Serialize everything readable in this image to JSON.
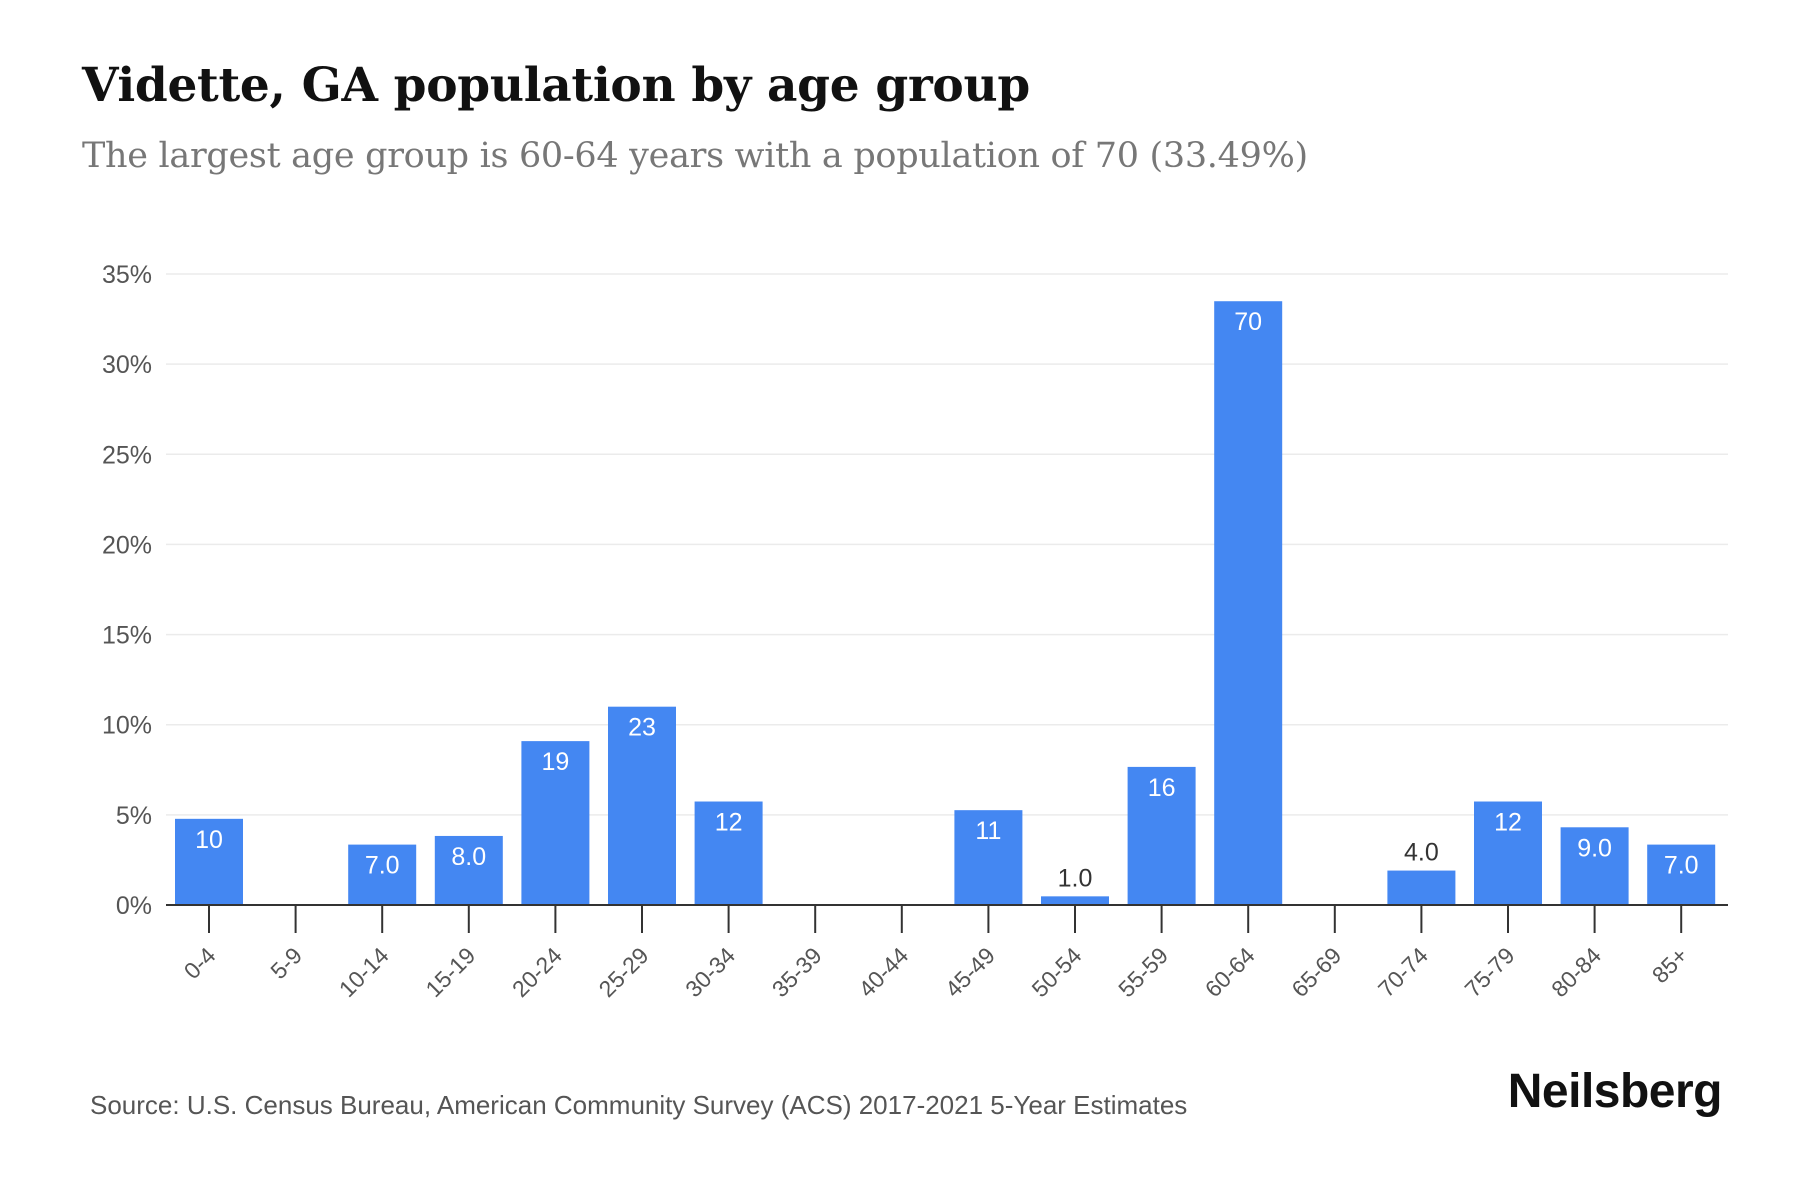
{
  "title": "Vidette, GA population by age group",
  "subtitle": "The largest age group is 60-64 years with a population of 70 (33.49%)",
  "source": "Source: U.S. Census Bureau, American Community Survey (ACS) 2017-2021 5-Year Estimates",
  "brand": "Neilsberg",
  "colors": {
    "bar": "#4487f2",
    "grid": "#ebebeb",
    "axis": "#333333",
    "tick_text": "#555555",
    "label_inside": "#ffffff",
    "label_outside": "#333333"
  },
  "chart_data": {
    "type": "bar",
    "categories": [
      "0-4",
      "5-9",
      "10-14",
      "15-19",
      "20-24",
      "25-29",
      "30-34",
      "35-39",
      "40-44",
      "45-49",
      "50-54",
      "55-59",
      "60-64",
      "65-69",
      "70-74",
      "75-79",
      "80-84",
      "85+"
    ],
    "values": [
      4.78,
      0,
      3.35,
      3.83,
      9.09,
      11.0,
      5.74,
      0,
      0,
      5.26,
      0.48,
      7.66,
      33.49,
      0,
      1.91,
      5.74,
      4.31,
      3.35
    ],
    "data_labels": [
      "10",
      "",
      "7.0",
      "8.0",
      "19",
      "23",
      "12",
      "",
      "",
      "11",
      "1.0",
      "16",
      "70",
      "",
      "4.0",
      "12",
      "9.0",
      "7.0"
    ],
    "y_ticks": [
      0,
      5,
      10,
      15,
      20,
      25,
      30,
      35
    ],
    "y_tick_labels": [
      "0%",
      "5%",
      "10%",
      "15%",
      "20%",
      "25%",
      "30%",
      "35%"
    ],
    "ylim": [
      0,
      35
    ],
    "xlabel": "",
    "ylabel": "",
    "grid": true,
    "legend": "none"
  }
}
